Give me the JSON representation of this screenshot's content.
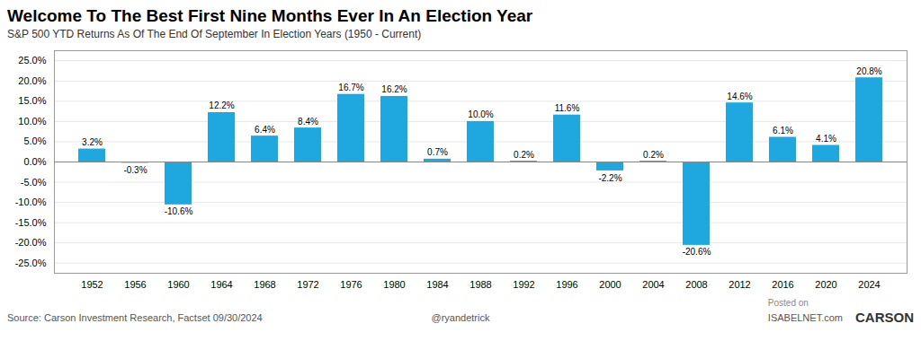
{
  "chart_data": {
    "type": "bar",
    "title": "Welcome To The Best First Nine Months Ever In An Election Year",
    "subtitle": "S&P 500 YTD Returns As Of The End Of September In Election Years (1950 - Current)",
    "annotations": [
      "Source: Carson Investment Research, Factset 09/30/2024",
      "@ryandetrick",
      "Posted on",
      "ISABELNET.com",
      "CARSON"
    ],
    "categories": [
      "1952",
      "1956",
      "1960",
      "1964",
      "1968",
      "1972",
      "1976",
      "1980",
      "1984",
      "1988",
      "1992",
      "1996",
      "2000",
      "2004",
      "2008",
      "2012",
      "2016",
      "2020",
      "2024"
    ],
    "values": [
      3.2,
      -0.3,
      -10.6,
      12.2,
      6.4,
      8.4,
      16.7,
      16.2,
      0.7,
      10.0,
      0.2,
      11.6,
      -2.2,
      0.2,
      -20.6,
      14.6,
      6.1,
      4.1,
      20.8
    ],
    "value_labels": [
      "3.2%",
      "-0.3%",
      "-10.6%",
      "12.2%",
      "6.4%",
      "8.4%",
      "16.7%",
      "16.2%",
      "0.7%",
      "10.0%",
      "0.2%",
      "11.6%",
      "-2.2%",
      "0.2%",
      "-20.6%",
      "14.6%",
      "6.1%",
      "4.1%",
      "20.8%"
    ],
    "data_labels": true,
    "color": "#1FA8E0",
    "ylim": [
      -27.5,
      27.5
    ],
    "yticks": [
      {
        "value": -25.0,
        "label": "-25.0%"
      },
      {
        "value": -20.0,
        "label": "-20.0%"
      },
      {
        "value": -15.0,
        "label": "-15.0%"
      },
      {
        "value": -10.0,
        "label": "-10.0%"
      },
      {
        "value": -5.0,
        "label": "-5.0%"
      },
      {
        "value": 0.0,
        "label": "0.0%"
      },
      {
        "value": 5.0,
        "label": "5.0%"
      },
      {
        "value": 10.0,
        "label": "10.0%"
      },
      {
        "value": 15.0,
        "label": "15.0%"
      },
      {
        "value": 20.0,
        "label": "20.0%"
      },
      {
        "value": 25.0,
        "label": "25.0%"
      }
    ],
    "grid": true
  }
}
